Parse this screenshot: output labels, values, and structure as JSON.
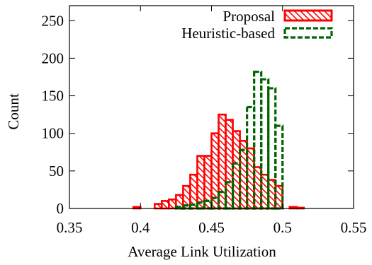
{
  "chart_data": {
    "type": "bar",
    "title": "",
    "xlabel": "Average Link Utilization",
    "ylabel": "Count",
    "xlim": [
      0.35,
      0.55
    ],
    "ylim": [
      0,
      270
    ],
    "xticks": [
      "0.35",
      "0.4",
      "0.45",
      "0.5",
      "0.55"
    ],
    "yticks": [
      "0",
      "50",
      "100",
      "150",
      "200",
      "250"
    ],
    "grid": false,
    "legend_position": "top-right",
    "bin_width": 0.005,
    "series": [
      {
        "name": "Proposal",
        "color": "#ff0000",
        "style": "hatched",
        "x": [
          0.3975,
          0.4125,
          0.4175,
          0.4225,
          0.4275,
          0.4325,
          0.4375,
          0.4425,
          0.4475,
          0.4525,
          0.4575,
          0.4625,
          0.4675,
          0.4725,
          0.4775,
          0.4825,
          0.4875,
          0.4925,
          0.4975,
          0.5075,
          0.5125
        ],
        "values": [
          2,
          6,
          10,
          12,
          18,
          30,
          45,
          70,
          70,
          100,
          125,
          118,
          103,
          90,
          80,
          55,
          45,
          38,
          30,
          2,
          1
        ]
      },
      {
        "name": "Heuristic-based",
        "color": "#006400",
        "style": "dashed",
        "x": [
          0.4275,
          0.4325,
          0.4375,
          0.4425,
          0.4475,
          0.4525,
          0.4575,
          0.4625,
          0.4675,
          0.4725,
          0.4775,
          0.4825,
          0.4875,
          0.4925,
          0.4975
        ],
        "values": [
          2,
          4,
          5,
          8,
          10,
          14,
          22,
          35,
          60,
          78,
          135,
          182,
          172,
          160,
          110
        ]
      }
    ]
  }
}
